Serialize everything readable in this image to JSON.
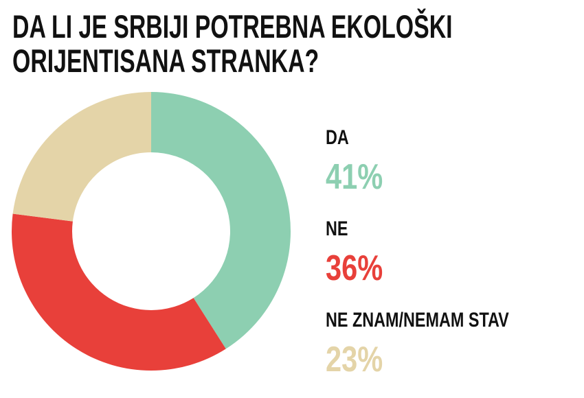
{
  "chart_data": {
    "type": "pie",
    "title": "DA LI JE SRBIJI POTREBNA EKOLOŠKI ORIJENTISANA STRANKA?",
    "categories": [
      "DA",
      "NE",
      "NE ZNAM/NEMAM STAV"
    ],
    "values": [
      41,
      36,
      23
    ],
    "value_labels": [
      "41%",
      "36%",
      "23%"
    ],
    "colors": [
      "#8dcfb1",
      "#e8403a",
      "#e4d4a8"
    ]
  }
}
